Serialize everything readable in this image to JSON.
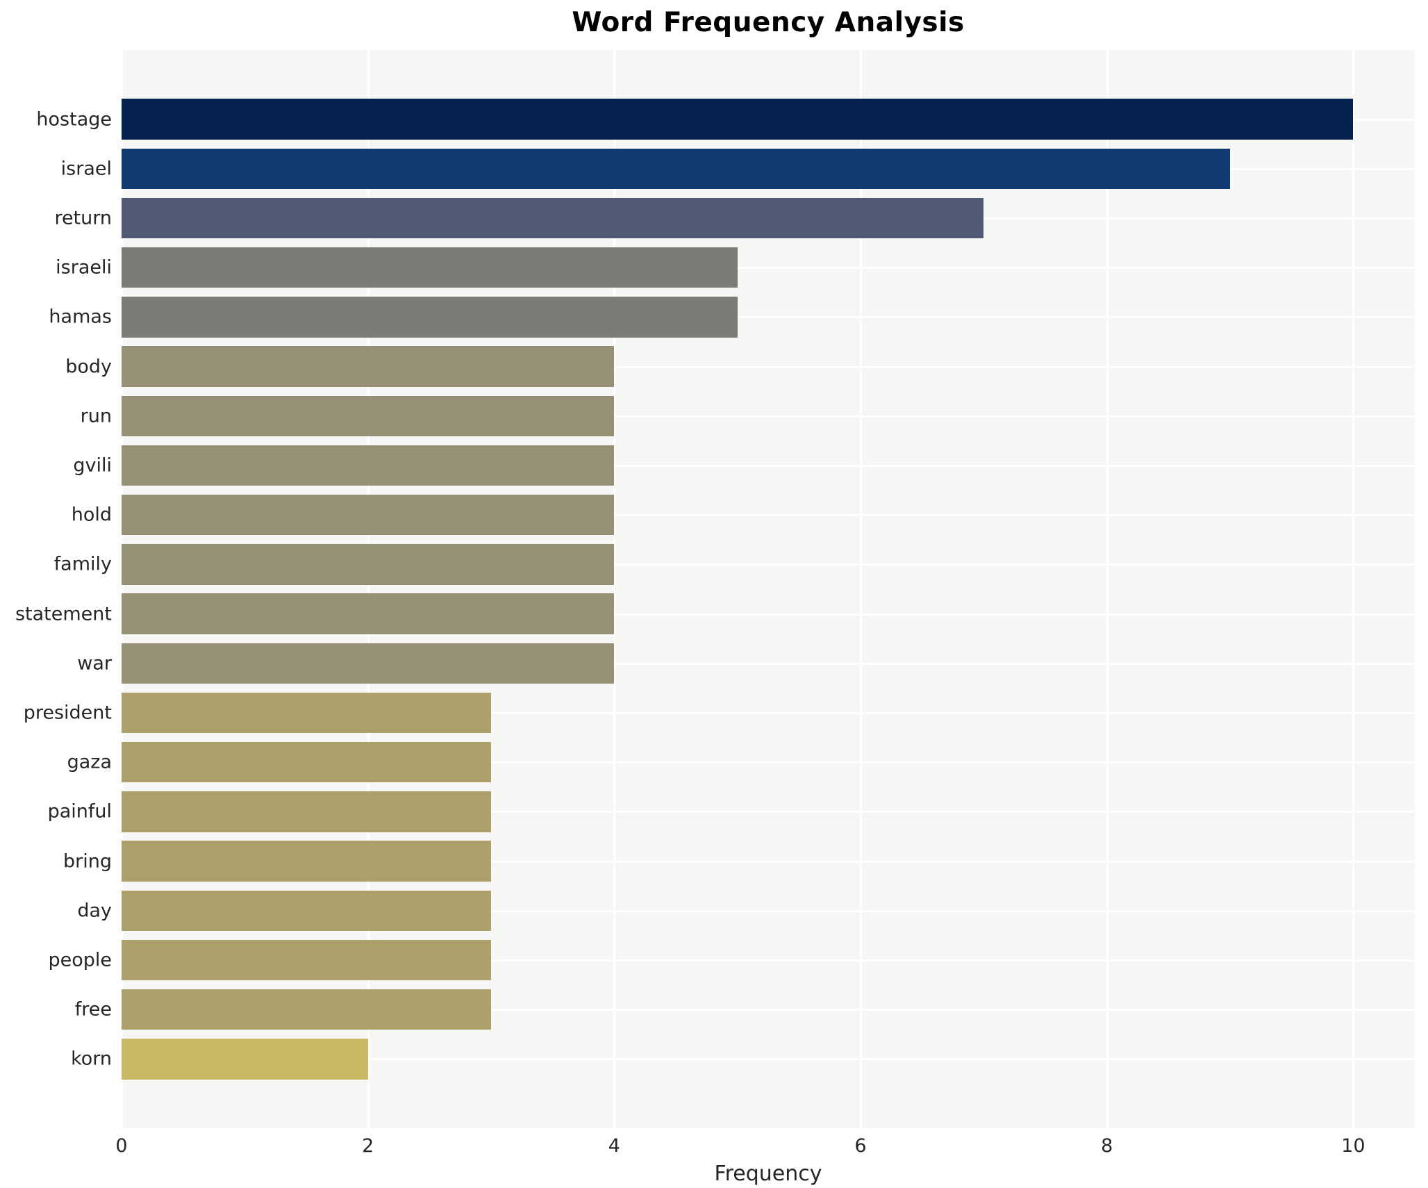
{
  "chart_data": {
    "type": "bar",
    "orientation": "horizontal",
    "title": "Word Frequency Analysis",
    "xlabel": "Frequency",
    "ylabel": "",
    "categories": [
      "hostage",
      "israel",
      "return",
      "israeli",
      "hamas",
      "body",
      "run",
      "gvili",
      "hold",
      "family",
      "statement",
      "war",
      "president",
      "gaza",
      "painful",
      "bring",
      "day",
      "people",
      "free",
      "korn"
    ],
    "values": [
      10,
      9,
      7,
      5,
      5,
      4,
      4,
      4,
      4,
      4,
      4,
      4,
      3,
      3,
      3,
      3,
      3,
      3,
      3,
      2
    ],
    "bar_colors": [
      "#05234e",
      "#123a72",
      "#505a72",
      "#7d7b76",
      "#7d7b76",
      "#959076",
      "#959076",
      "#959076",
      "#959076",
      "#959076",
      "#959076",
      "#959076",
      "#aca16c",
      "#aca16c",
      "#aca16c",
      "#aca16c",
      "#aca16c",
      "#aca16c",
      "#aca16c",
      "#c8b763"
    ],
    "xticks": [
      0,
      2,
      4,
      6,
      8,
      10
    ],
    "xlim": [
      0,
      10.5
    ],
    "grid": true,
    "legend": false,
    "plot_bg_color": "#f6f6f4",
    "grid_color": "#ffffff",
    "text_color": "#262626"
  }
}
